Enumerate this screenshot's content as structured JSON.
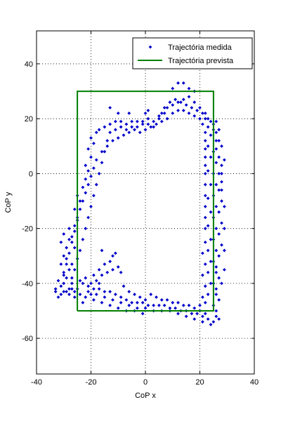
{
  "chart_data": {
    "type": "scatter",
    "xlabel": "CoP x",
    "ylabel": "CoP y",
    "xlim": [
      -40,
      40
    ],
    "ylim": [
      -73,
      52
    ],
    "xticks": [
      -40,
      -20,
      0,
      20,
      40
    ],
    "yticks": [
      -60,
      -40,
      -20,
      0,
      20,
      40
    ],
    "grid": true,
    "legend_position": "top-right",
    "series": [
      {
        "name": "Trajectória medida",
        "kind": "markers",
        "color": "#0000cc",
        "points": [
          [
            -33,
            -43
          ],
          [
            -32,
            -45
          ],
          [
            -31,
            -44
          ],
          [
            -30,
            -43
          ],
          [
            -29,
            -43
          ],
          [
            -28,
            -42
          ],
          [
            -27,
            -42
          ],
          [
            -26,
            -43
          ],
          [
            -25,
            -42
          ],
          [
            -31,
            -41
          ],
          [
            -30,
            -40
          ],
          [
            -29,
            -38
          ],
          [
            -30,
            -36
          ],
          [
            -31,
            -33
          ],
          [
            -30,
            -30
          ],
          [
            -29,
            -27
          ],
          [
            -31,
            -25
          ],
          [
            -30,
            -22
          ],
          [
            -28,
            -20
          ],
          [
            -28,
            -24
          ],
          [
            -29,
            -31
          ],
          [
            -28,
            -35
          ],
          [
            -27,
            -38
          ],
          [
            -27,
            -33
          ],
          [
            -26,
            -27
          ],
          [
            -27,
            -23
          ],
          [
            -26,
            -19
          ],
          [
            -25,
            -16
          ],
          [
            -26,
            -13
          ],
          [
            -24,
            -10
          ],
          [
            -25,
            -8
          ],
          [
            -23,
            -5
          ],
          [
            -22,
            -2
          ],
          [
            -21,
            1
          ],
          [
            -22,
            3
          ],
          [
            -20,
            6
          ],
          [
            -21,
            9
          ],
          [
            -19,
            11
          ],
          [
            -20,
            13
          ],
          [
            -18,
            15
          ],
          [
            -17,
            16
          ],
          [
            -15,
            17
          ],
          [
            -13,
            18
          ],
          [
            -11,
            19
          ],
          [
            -9,
            19
          ],
          [
            -7,
            18
          ],
          [
            -5,
            19
          ],
          [
            -3,
            19
          ],
          [
            -1,
            19
          ],
          [
            1,
            20
          ],
          [
            3,
            19
          ],
          [
            5,
            21
          ],
          [
            7,
            22
          ],
          [
            8,
            24
          ],
          [
            10,
            25
          ],
          [
            12,
            26
          ],
          [
            14,
            27
          ],
          [
            16,
            28
          ],
          [
            18,
            26
          ],
          [
            20,
            24
          ],
          [
            22,
            22
          ],
          [
            23,
            20
          ],
          [
            25,
            18
          ],
          [
            26,
            15
          ],
          [
            27,
            12
          ],
          [
            26,
            9
          ],
          [
            27,
            6
          ],
          [
            28,
            3
          ],
          [
            27,
            0
          ],
          [
            28,
            -3
          ],
          [
            27,
            -6
          ],
          [
            28,
            -10
          ],
          [
            27,
            -14
          ],
          [
            28,
            -18
          ],
          [
            27,
            -22
          ],
          [
            28,
            -26
          ],
          [
            27,
            -30
          ],
          [
            26,
            -34
          ],
          [
            27,
            -38
          ],
          [
            26,
            -42
          ],
          [
            27,
            -46
          ],
          [
            26,
            -50
          ],
          [
            27,
            -53
          ],
          [
            25,
            -54
          ],
          [
            23,
            -53
          ],
          [
            21,
            -52
          ],
          [
            19,
            -51
          ],
          [
            17,
            -51
          ],
          [
            15,
            -50
          ],
          [
            13,
            -50
          ],
          [
            11,
            -49
          ],
          [
            9,
            -49
          ],
          [
            7,
            -48
          ],
          [
            5,
            -48
          ],
          [
            3,
            -48
          ],
          [
            1,
            -48
          ],
          [
            -1,
            -47
          ],
          [
            -3,
            -47
          ],
          [
            -5,
            -47
          ],
          [
            -7,
            -46
          ],
          [
            -9,
            -45
          ],
          [
            -11,
            -44
          ],
          [
            -13,
            -43
          ],
          [
            -15,
            -43
          ],
          [
            -17,
            -42
          ],
          [
            -19,
            -42
          ],
          [
            -21,
            -41
          ],
          [
            -23,
            -40
          ],
          [
            -24,
            -39
          ],
          [
            -22,
            -38
          ],
          [
            -20,
            -40
          ],
          [
            -18,
            -39
          ],
          [
            -16,
            -37
          ],
          [
            -14,
            -36
          ],
          [
            -12,
            -35
          ],
          [
            -10,
            -34
          ],
          [
            -11,
            -29
          ],
          [
            -12,
            -30
          ],
          [
            -13,
            -32
          ],
          [
            -15,
            -33
          ],
          [
            -17,
            -35
          ],
          [
            -19,
            -37
          ],
          [
            -8,
            -41
          ],
          [
            -6,
            -43
          ],
          [
            -4,
            -44
          ],
          [
            -2,
            -45
          ],
          [
            0,
            -46
          ],
          [
            2,
            -44
          ],
          [
            4,
            -45
          ],
          [
            6,
            -46
          ],
          [
            8,
            -46
          ],
          [
            10,
            -47
          ],
          [
            12,
            -47
          ],
          [
            14,
            -48
          ],
          [
            16,
            -48
          ],
          [
            18,
            -49
          ],
          [
            20,
            -48
          ],
          [
            22,
            -47
          ],
          [
            23,
            -44
          ],
          [
            24,
            -40
          ],
          [
            23,
            -36
          ],
          [
            24,
            -32
          ],
          [
            23,
            -28
          ],
          [
            24,
            -24
          ],
          [
            23,
            -19
          ],
          [
            24,
            -14
          ],
          [
            23,
            -9
          ],
          [
            24,
            -4
          ],
          [
            23,
            1
          ],
          [
            24,
            6
          ],
          [
            23,
            10
          ],
          [
            24,
            14
          ],
          [
            23,
            17
          ],
          [
            22,
            20
          ],
          [
            21,
            22
          ],
          [
            19,
            23
          ],
          [
            17,
            24
          ],
          [
            15,
            25
          ],
          [
            13,
            26
          ],
          [
            11,
            27
          ],
          [
            9,
            26
          ],
          [
            7,
            24
          ],
          [
            6,
            22
          ],
          [
            5,
            20
          ],
          [
            4,
            18
          ],
          [
            2,
            17
          ],
          [
            0,
            16
          ],
          [
            -2,
            15
          ],
          [
            -4,
            16
          ],
          [
            -6,
            15
          ],
          [
            -8,
            14
          ],
          [
            -10,
            13
          ],
          [
            -12,
            12
          ],
          [
            -14,
            10
          ],
          [
            -16,
            8
          ],
          [
            -18,
            5
          ],
          [
            -19,
            2
          ],
          [
            -20,
            -1
          ],
          [
            -21,
            -4
          ],
          [
            -22,
            -7
          ],
          [
            -23,
            -10
          ],
          [
            -24,
            -13
          ],
          [
            -25,
            -17
          ],
          [
            -26,
            -21
          ],
          [
            -27,
            -25
          ],
          [
            -28,
            -29
          ],
          [
            -29,
            -33
          ],
          [
            -30,
            -37
          ],
          [
            -32,
            -39
          ],
          [
            -33,
            -42
          ],
          [
            -28,
            -44
          ],
          [
            -26,
            -45
          ],
          [
            -24,
            -44
          ],
          [
            -21,
            -43
          ],
          [
            -18,
            -44
          ],
          [
            -15,
            -45
          ],
          [
            -12,
            -46
          ],
          [
            -9,
            -47
          ],
          [
            -6,
            -48
          ],
          [
            -3,
            -49
          ],
          [
            0,
            -49
          ],
          [
            3,
            -50
          ],
          [
            6,
            -50
          ],
          [
            9,
            -50
          ],
          [
            12,
            -51
          ],
          [
            15,
            -52
          ],
          [
            18,
            -53
          ],
          [
            21,
            -54
          ],
          [
            24,
            -55
          ],
          [
            26,
            -52
          ],
          [
            25,
            -48
          ],
          [
            26,
            -44
          ],
          [
            25,
            -40
          ],
          [
            26,
            -36
          ],
          [
            25,
            -32
          ],
          [
            26,
            -28
          ],
          [
            25,
            -24
          ],
          [
            26,
            -20
          ],
          [
            25,
            -16
          ],
          [
            26,
            -12
          ],
          [
            25,
            -8
          ],
          [
            26,
            -4
          ],
          [
            25,
            0
          ],
          [
            26,
            4
          ],
          [
            25,
            8
          ],
          [
            26,
            12
          ],
          [
            25,
            16
          ],
          [
            24,
            19
          ],
          [
            12,
            33
          ],
          [
            14,
            33
          ],
          [
            10,
            31
          ],
          [
            16,
            31
          ],
          [
            18,
            30
          ],
          [
            -13,
            24
          ],
          [
            -10,
            22
          ],
          [
            -6,
            22
          ],
          [
            0,
            22
          ],
          [
            1,
            23
          ],
          [
            -16,
            -28
          ],
          [
            -9,
            -36
          ],
          [
            -17,
            -40
          ],
          [
            -20,
            -44
          ],
          [
            -23,
            -47
          ],
          [
            -22,
            -45
          ],
          [
            -19,
            -46
          ],
          [
            -16,
            -47
          ],
          [
            -13,
            -48
          ],
          [
            -10,
            -49
          ],
          [
            -7,
            -50
          ],
          [
            -4,
            -50
          ],
          [
            -1,
            -51
          ],
          [
            22,
            -25
          ],
          [
            21,
            -29
          ],
          [
            22,
            -33
          ],
          [
            21,
            -37
          ],
          [
            22,
            -41
          ],
          [
            21,
            -45
          ],
          [
            20,
            -50
          ],
          [
            22,
            -51
          ],
          [
            28,
            -40
          ],
          [
            29,
            -35
          ],
          [
            29,
            -28
          ],
          [
            29,
            -20
          ],
          [
            29,
            -12
          ],
          [
            28,
            -6
          ],
          [
            28,
            0
          ],
          [
            29,
            5
          ],
          [
            28,
            10
          ],
          [
            27,
            16
          ],
          [
            26,
            19
          ],
          [
            -24,
            -28
          ],
          [
            -25,
            -31
          ],
          [
            -26,
            -35
          ],
          [
            -27,
            -40
          ],
          [
            -23,
            -24
          ],
          [
            -22,
            -20
          ],
          [
            -21,
            -16
          ],
          [
            -20,
            -12
          ],
          [
            -19,
            -8
          ],
          [
            -18,
            -4
          ],
          [
            -17,
            0
          ],
          [
            -16,
            4
          ],
          [
            -15,
            8
          ],
          [
            -14,
            12
          ],
          [
            -13,
            15
          ],
          [
            -11,
            16
          ],
          [
            -9,
            17
          ],
          [
            -7,
            16
          ],
          [
            -5,
            17
          ],
          [
            -3,
            17
          ],
          [
            -1,
            18
          ],
          [
            1,
            18
          ],
          [
            3,
            17
          ],
          [
            6,
            19
          ],
          [
            8,
            20
          ],
          [
            10,
            22
          ],
          [
            12,
            23
          ],
          [
            14,
            23
          ],
          [
            16,
            22
          ],
          [
            18,
            21
          ],
          [
            20,
            20
          ],
          [
            21,
            18
          ],
          [
            22,
            15
          ],
          [
            22,
            12
          ],
          [
            22,
            9
          ],
          [
            22,
            6
          ],
          [
            22,
            3
          ],
          [
            22,
            0
          ],
          [
            22,
            -4
          ],
          [
            22,
            -8
          ],
          [
            22,
            -12
          ],
          [
            22,
            -16
          ],
          [
            22,
            -20
          ]
        ]
      },
      {
        "name": "Trajectória prevista",
        "kind": "line",
        "color": "#007f00",
        "points": [
          [
            -25,
            -50
          ],
          [
            -25,
            30
          ],
          [
            25,
            30
          ],
          [
            25,
            -50
          ],
          [
            -25,
            -50
          ]
        ]
      }
    ]
  }
}
